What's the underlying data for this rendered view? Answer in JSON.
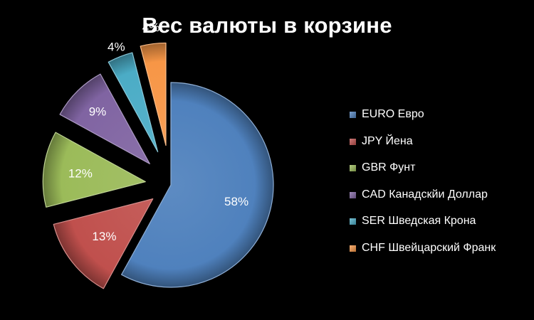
{
  "chart_data": {
    "type": "pie",
    "title": "Вес валюты в корзине",
    "exploded": true,
    "start_angle_deg": 0,
    "direction": "clockwise",
    "legend_position": "right",
    "slices": [
      {
        "label": "EURO Евро",
        "value": 58,
        "value_label": "58%",
        "color": "#4f81bd"
      },
      {
        "label": "JPY Йена",
        "value": 13,
        "value_label": "13%",
        "color": "#c0504d"
      },
      {
        "label": "GBR Фунт",
        "value": 12,
        "value_label": "12%",
        "color": "#9bbb59"
      },
      {
        "label": "CAD Канадскйи Доллар",
        "value": 9,
        "value_label": "9%",
        "color": "#8064a2"
      },
      {
        "label": "SER Шведская Крона",
        "value": 4,
        "value_label": "4%",
        "color": "#4bacc6"
      },
      {
        "label": "CHF Швейцарский Франк",
        "value": 4,
        "value_label": "4%",
        "color": "#f79646"
      }
    ]
  }
}
